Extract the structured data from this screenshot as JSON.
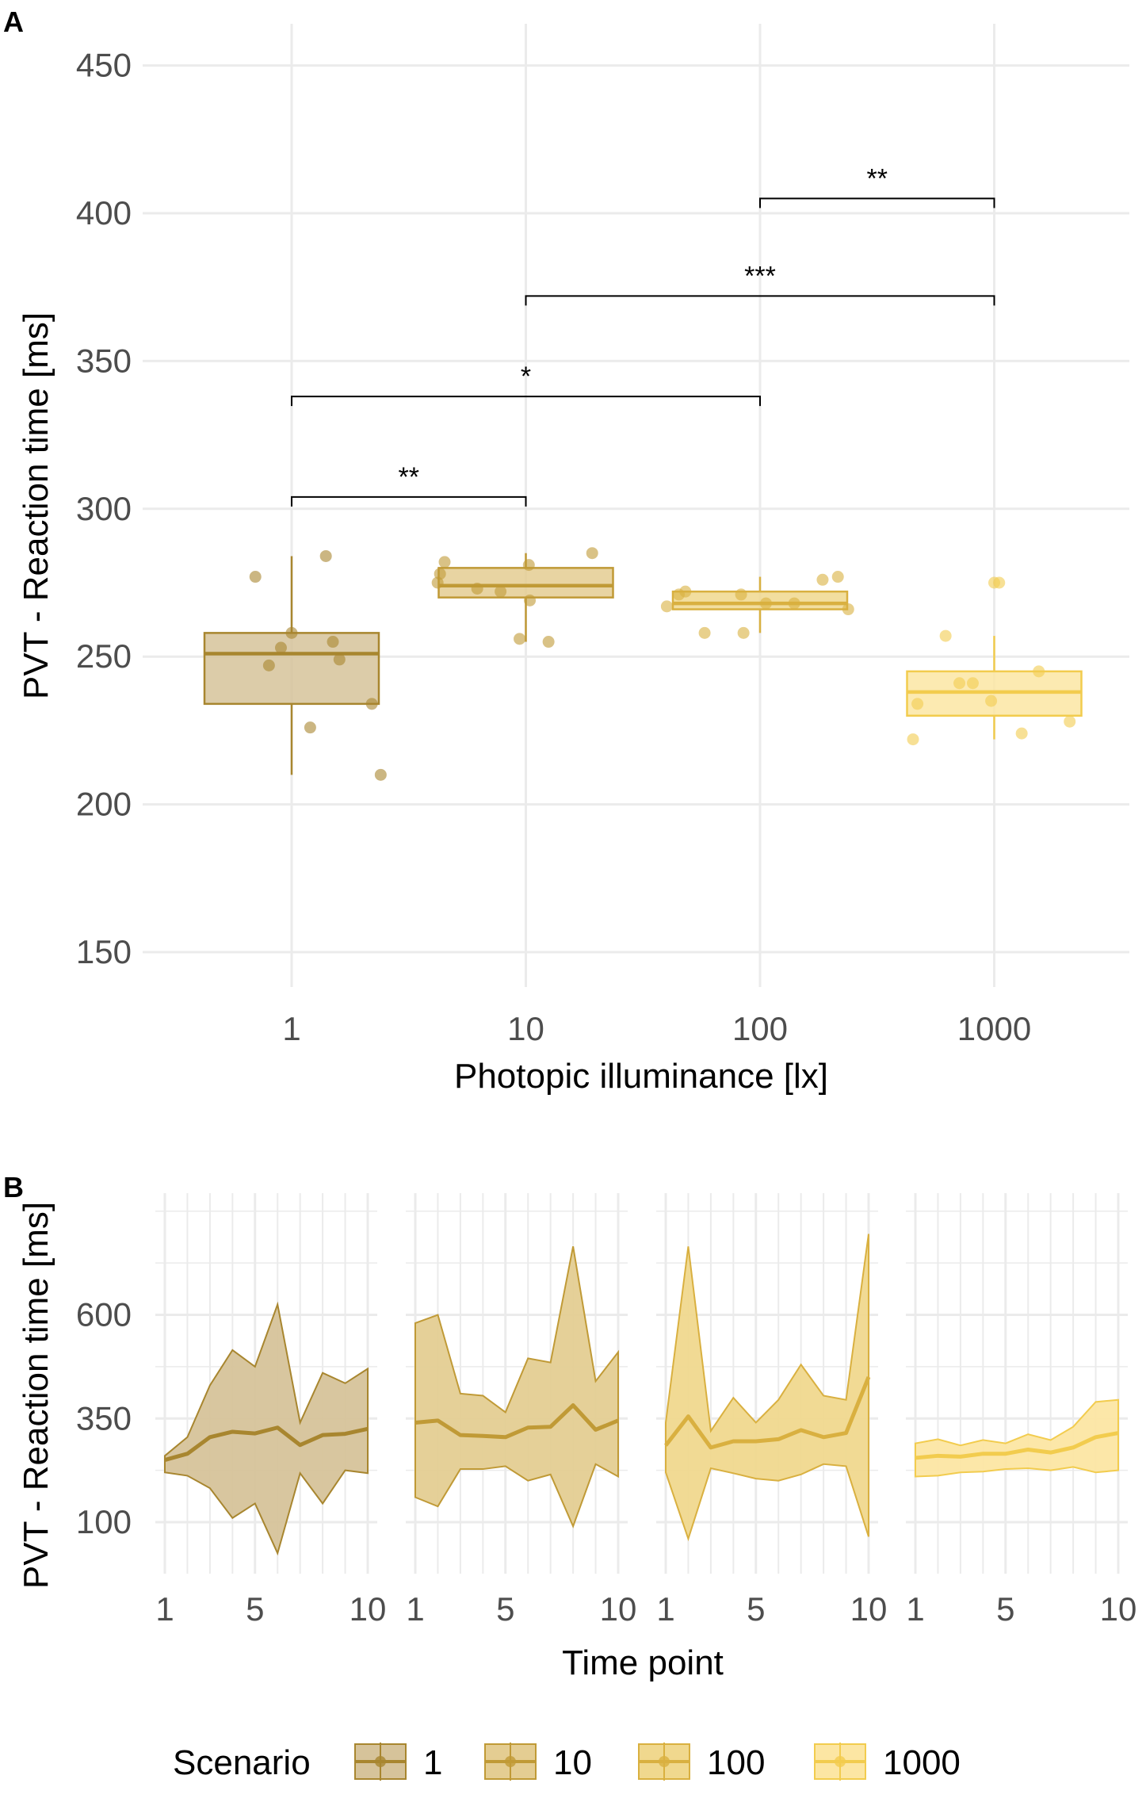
{
  "panels": {
    "a": {
      "letter": "A"
    },
    "b": {
      "letter": "B"
    }
  },
  "colors": {
    "grid": "#ebebeb",
    "tick_text": "#4d4d4d",
    "text": "#000000",
    "scenario_fill": [
      "#d6c39a",
      "#e4cd92",
      "#f0d88e",
      "#fce6a3"
    ],
    "scenario_line": [
      "#a8862f",
      "#c09a36",
      "#d9b040",
      "#f2cc4e"
    ]
  },
  "chart_data": [
    {
      "id": "panel-a",
      "type": "box",
      "x_scale": "log10",
      "xlabel": "Photopic illuminance [lx]",
      "ylabel": "PVT - Reaction time [ms]",
      "x_ticks": [
        1,
        10,
        100,
        1000
      ],
      "x_tick_labels": [
        "1",
        "10",
        "100",
        "1000"
      ],
      "ylim": [
        140,
        455
      ],
      "y_ticks": [
        150,
        200,
        250,
        300,
        350,
        400,
        450
      ],
      "y_tick_labels": [
        "150",
        "200",
        "250",
        "300",
        "350",
        "400",
        "450"
      ],
      "grid": true,
      "boxes": [
        {
          "scenario": "1",
          "x": 1,
          "q1": 234,
          "median": 251,
          "q3": 258,
          "whisker_low": 210,
          "whisker_high": 284
        },
        {
          "scenario": "10",
          "x": 10,
          "q1": 270,
          "median": 274,
          "q3": 280,
          "whisker_low": 255,
          "whisker_high": 285
        },
        {
          "scenario": "100",
          "x": 100,
          "q1": 266,
          "median": 268,
          "q3": 272,
          "whisker_low": 258,
          "whisker_high": 277
        },
        {
          "scenario": "1000",
          "x": 1000,
          "q1": 230,
          "median": 238,
          "q3": 245,
          "whisker_low": 222,
          "whisker_high": 257
        }
      ],
      "points": [
        {
          "scenario": "1",
          "x": [
            0.7,
            0.9,
            1.0,
            1.4,
            1.5,
            1.6,
            2.2,
            2.4,
            1.2,
            0.8
          ],
          "y": [
            277,
            253,
            258,
            284,
            255,
            249,
            234,
            210,
            226,
            247
          ]
        },
        {
          "scenario": "10",
          "x": [
            4.2,
            4.3,
            4.5,
            6.2,
            7.8,
            9.4,
            10.4,
            10.3,
            12.5,
            19.2
          ],
          "y": [
            275,
            278,
            282,
            273,
            272,
            256,
            269,
            281,
            255,
            285
          ]
        },
        {
          "scenario": "100",
          "x": [
            40,
            45,
            48,
            58,
            83,
            85,
            106,
            140,
            185,
            215,
            238
          ],
          "y": [
            267,
            271,
            272,
            258,
            271,
            258,
            268,
            268,
            276,
            277,
            266
          ]
        },
        {
          "scenario": "1000",
          "x": [
            450,
            470,
            620,
            710,
            810,
            970,
            1000,
            1050,
            1310,
            1550,
            2100
          ],
          "y": [
            222,
            234,
            257,
            241,
            241,
            235,
            275,
            275,
            224,
            245,
            228
          ]
        }
      ],
      "significance": [
        {
          "x1": 1,
          "x2": 10,
          "y": 304,
          "label": "**"
        },
        {
          "x1": 1,
          "x2": 100,
          "y": 338,
          "label": "*"
        },
        {
          "x1": 10,
          "x2": 1000,
          "y": 372,
          "label": "***"
        },
        {
          "x1": 100,
          "x2": 1000,
          "y": 405,
          "label": "**"
        }
      ]
    },
    {
      "id": "panel-b",
      "type": "area",
      "xlabel": "Time point",
      "ylabel": "PVT - Reaction time [ms]",
      "x_ticks": [
        1,
        5,
        10
      ],
      "x_tick_labels": [
        "1",
        "5",
        "10"
      ],
      "xlim": [
        1,
        10
      ],
      "ylim": [
        -30,
        830
      ],
      "y_ticks": [
        100,
        350,
        600
      ],
      "y_tick_labels": [
        "100",
        "350",
        "600"
      ],
      "grid": true,
      "series": [
        {
          "name": "1",
          "x": [
            1,
            2,
            3,
            4,
            5,
            6,
            7,
            8,
            9,
            10
          ],
          "mean": [
            250,
            265,
            305,
            318,
            314,
            328,
            286,
            310,
            313,
            325
          ],
          "upper": [
            260,
            305,
            430,
            515,
            475,
            625,
            340,
            460,
            435,
            470
          ],
          "lower": [
            220,
            212,
            182,
            110,
            145,
            25,
            218,
            145,
            225,
            218
          ]
        },
        {
          "name": "10",
          "x": [
            1,
            2,
            3,
            4,
            5,
            6,
            7,
            8,
            9,
            10
          ],
          "mean": [
            340,
            345,
            310,
            308,
            305,
            328,
            330,
            382,
            323,
            345
          ],
          "upper": [
            580,
            600,
            410,
            405,
            365,
            495,
            485,
            765,
            440,
            510
          ],
          "lower": [
            160,
            138,
            228,
            228,
            235,
            200,
            215,
            90,
            240,
            210
          ]
        },
        {
          "name": "100",
          "x": [
            1,
            2,
            3,
            4,
            5,
            6,
            7,
            8,
            9,
            10
          ],
          "mean": [
            285,
            355,
            280,
            295,
            295,
            300,
            322,
            305,
            315,
            450
          ],
          "upper": [
            340,
            765,
            320,
            400,
            340,
            395,
            480,
            405,
            395,
            795
          ],
          "lower": [
            220,
            60,
            230,
            218,
            205,
            200,
            215,
            240,
            235,
            65
          ]
        },
        {
          "name": "1000",
          "x": [
            1,
            2,
            3,
            4,
            5,
            6,
            7,
            8,
            9,
            10
          ],
          "mean": [
            255,
            260,
            258,
            265,
            265,
            275,
            268,
            280,
            305,
            315
          ],
          "upper": [
            290,
            300,
            285,
            298,
            290,
            312,
            298,
            330,
            390,
            395
          ],
          "lower": [
            210,
            212,
            220,
            222,
            228,
            230,
            225,
            233,
            220,
            225
          ]
        }
      ],
      "legend": {
        "title": "Scenario",
        "placement": "bottom",
        "entries": [
          "1",
          "10",
          "100",
          "1000"
        ]
      }
    }
  ]
}
